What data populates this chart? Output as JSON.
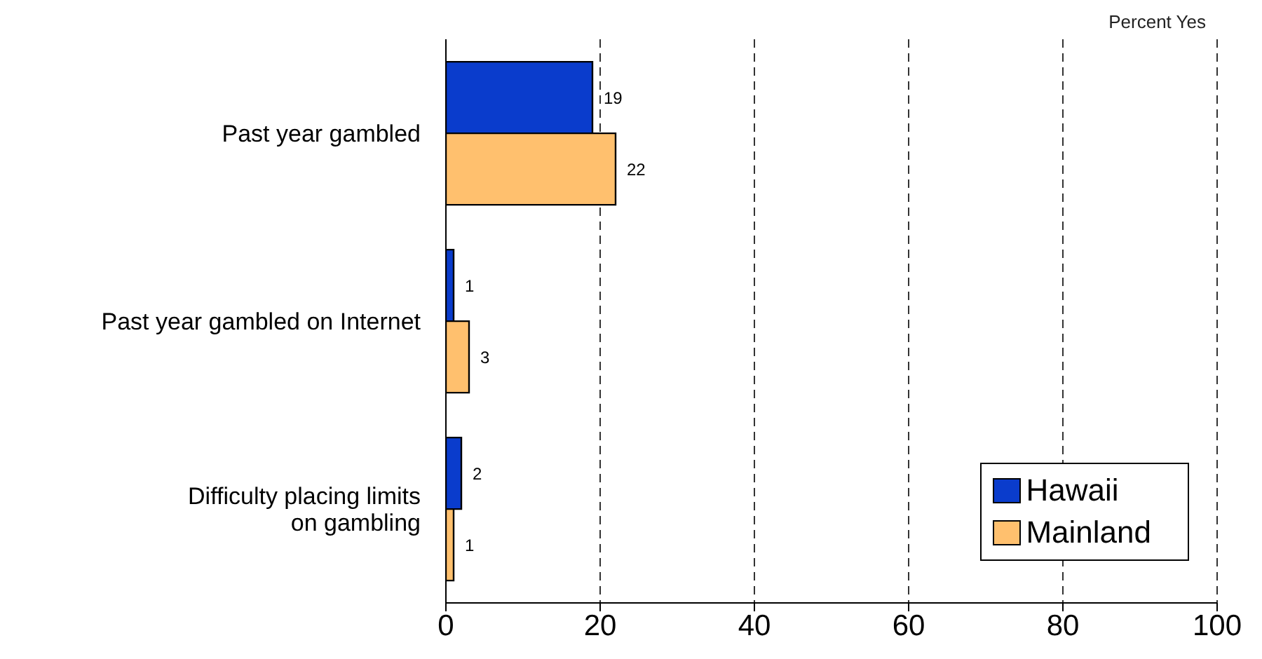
{
  "chart_data": {
    "type": "bar",
    "orientation": "horizontal",
    "xlabel": "Percent Yes",
    "categories": [
      "Past year gambled",
      "Past year gambled on Internet",
      "Difficulty placing limits\non gambling"
    ],
    "series": [
      {
        "name": "Hawaii",
        "color": "#0a3ccc",
        "values": [
          19,
          1,
          2
        ]
      },
      {
        "name": "Mainland",
        "color": "#ffc06e",
        "values": [
          22,
          3,
          1
        ]
      }
    ],
    "xlim": [
      0,
      100
    ],
    "xticks": [
      0,
      20,
      40,
      60,
      80,
      100
    ],
    "grid": "x",
    "legend": "bottom right",
    "data_labels": true
  }
}
